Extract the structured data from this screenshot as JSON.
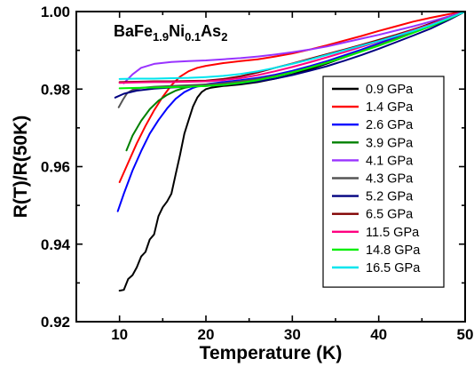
{
  "chart_data": {
    "type": "line",
    "title": "",
    "annotation": {
      "parts": [
        {
          "text": "BaFe",
          "sub": false
        },
        {
          "text": "1.9",
          "sub": true
        },
        {
          "text": "Ni",
          "sub": false
        },
        {
          "text": "0.1",
          "sub": true
        },
        {
          "text": "As",
          "sub": false
        },
        {
          "text": "2",
          "sub": true
        }
      ]
    },
    "xlabel": "Temperature (K)",
    "ylabel": "R(T)/R(50K)",
    "xlim": [
      5,
      50
    ],
    "ylim": [
      0.92,
      1.0
    ],
    "xticks": [
      10,
      20,
      30,
      40,
      50
    ],
    "xtick_labels": [
      "10",
      "20",
      "30",
      "40",
      "50"
    ],
    "yticks": [
      0.92,
      0.94,
      0.96,
      0.98,
      1.0
    ],
    "ytick_labels": [
      "0.92",
      "0.94",
      "0.96",
      "0.98",
      "1.00"
    ],
    "grid": false,
    "legend_position": "right",
    "series": [
      {
        "name": "0.9 GPa",
        "color": "#000000",
        "x": [
          10.0,
          10.5,
          11.0,
          11.5,
          12.0,
          12.5,
          13.0,
          13.5,
          14.0,
          14.5,
          15.0,
          15.5,
          16.0,
          16.5,
          17.0,
          17.5,
          18.0,
          18.5,
          19.0,
          19.5,
          20.0,
          20.5,
          21.0,
          22.0,
          24.0,
          26.0,
          28.0,
          30.0,
          32.0,
          34.0,
          36.0,
          38.0,
          40.0,
          42.0,
          44.0,
          46.0,
          48.0,
          50.0
        ],
        "y": [
          0.928,
          0.9282,
          0.931,
          0.932,
          0.934,
          0.9368,
          0.938,
          0.9412,
          0.9425,
          0.9472,
          0.9495,
          0.951,
          0.953,
          0.958,
          0.963,
          0.9685,
          0.972,
          0.9755,
          0.9778,
          0.9792,
          0.98,
          0.9803,
          0.9805,
          0.9808,
          0.9812,
          0.9818,
          0.9827,
          0.9838,
          0.9851,
          0.9866,
          0.9882,
          0.9899,
          0.9917,
          0.9935,
          0.9953,
          0.9969,
          0.9985,
          1.0
        ]
      },
      {
        "name": "1.4 GPa",
        "color": "#ff0000",
        "x": [
          10.0,
          11.0,
          12.0,
          13.0,
          14.0,
          15.0,
          16.0,
          17.0,
          18.0,
          19.0,
          20.0,
          22.0,
          24.0,
          26.0,
          28.0,
          30.0,
          32.0,
          34.0,
          36.0,
          38.0,
          40.0,
          42.0,
          44.0,
          46.0,
          48.0,
          50.0
        ],
        "y": [
          0.956,
          0.961,
          0.966,
          0.9705,
          0.9745,
          0.978,
          0.981,
          0.9832,
          0.9846,
          0.9855,
          0.986,
          0.9867,
          0.9872,
          0.9877,
          0.9884,
          0.9892,
          0.9902,
          0.9913,
          0.9925,
          0.9937,
          0.995,
          0.9962,
          0.9974,
          0.9984,
          0.9993,
          1.0
        ]
      },
      {
        "name": "2.6 GPa",
        "color": "#0000ff",
        "x": [
          9.8,
          10.5,
          11.5,
          12.5,
          13.5,
          14.5,
          15.5,
          16.5,
          17.5,
          18.5,
          19.5,
          20.5,
          22.0,
          24.0,
          26.0,
          28.0,
          30.0,
          32.0,
          34.0,
          36.0,
          38.0,
          40.0,
          42.0,
          44.0,
          46.0,
          48.0,
          50.0
        ],
        "y": [
          0.9485,
          0.953,
          0.959,
          0.964,
          0.9685,
          0.972,
          0.975,
          0.9775,
          0.9792,
          0.9803,
          0.981,
          0.9814,
          0.9818,
          0.9823,
          0.9829,
          0.9837,
          0.9847,
          0.9859,
          0.9872,
          0.9887,
          0.9902,
          0.9918,
          0.9934,
          0.995,
          0.9966,
          0.9983,
          1.0
        ]
      },
      {
        "name": "3.9 GPa",
        "color": "#008000",
        "x": [
          10.8,
          11.5,
          12.5,
          13.5,
          14.5,
          15.5,
          16.5,
          17.5,
          18.5,
          20.0,
          22.0,
          24.0,
          26.0,
          28.0,
          30.0,
          32.0,
          34.0,
          36.0,
          38.0,
          40.0,
          42.0,
          44.0,
          46.0,
          48.0,
          50.0
        ],
        "y": [
          0.9642,
          0.968,
          0.9718,
          0.9748,
          0.977,
          0.9785,
          0.9796,
          0.9803,
          0.9807,
          0.981,
          0.9813,
          0.9818,
          0.9825,
          0.9833,
          0.9843,
          0.9855,
          0.9868,
          0.9882,
          0.9897,
          0.9913,
          0.993,
          0.9947,
          0.9964,
          0.9982,
          1.0
        ]
      },
      {
        "name": "4.1 GPa",
        "color": "#9933ff",
        "x": [
          10.5,
          11.5,
          12.5,
          14.0,
          16.0,
          18.0,
          20.0,
          22.0,
          24.0,
          26.0,
          28.0,
          30.0,
          32.0,
          34.0,
          36.0,
          38.0,
          40.0,
          42.0,
          44.0,
          46.0,
          48.0,
          50.0
        ],
        "y": [
          0.9815,
          0.9838,
          0.9855,
          0.9865,
          0.987,
          0.9872,
          0.9874,
          0.9877,
          0.988,
          0.9884,
          0.9889,
          0.9895,
          0.9902,
          0.991,
          0.992,
          0.993,
          0.994,
          0.9951,
          0.9962,
          0.9974,
          0.9987,
          1.0
        ]
      },
      {
        "name": "4.3 GPa",
        "color": "#555555",
        "x": [
          9.9,
          10.4,
          10.9,
          11.5,
          12.5,
          14.0,
          16.0,
          18.0,
          20.0,
          22.0,
          24.0,
          26.0,
          28.0,
          30.0,
          32.0,
          34.0,
          36.0,
          38.0,
          40.0,
          42.0,
          44.0,
          46.0,
          48.0,
          50.0
        ],
        "y": [
          0.9753,
          0.9773,
          0.979,
          0.9798,
          0.9803,
          0.9806,
          0.9808,
          0.981,
          0.9812,
          0.9815,
          0.982,
          0.9826,
          0.9834,
          0.9844,
          0.9856,
          0.9869,
          0.9883,
          0.9898,
          0.9914,
          0.993,
          0.9947,
          0.9964,
          0.9982,
          1.0
        ]
      },
      {
        "name": "5.2 GPa",
        "color": "#000080",
        "x": [
          9.5,
          10.5,
          12.0,
          14.0,
          16.0,
          18.0,
          20.0,
          22.0,
          24.0,
          26.0,
          28.0,
          30.0,
          32.0,
          34.0,
          36.0,
          38.0,
          40.0,
          42.0,
          44.0,
          46.0,
          48.0,
          50.0
        ],
        "y": [
          0.9778,
          0.9788,
          0.9796,
          0.9801,
          0.9804,
          0.9806,
          0.9808,
          0.9811,
          0.9815,
          0.982,
          0.9827,
          0.9836,
          0.9847,
          0.9859,
          0.9873,
          0.9888,
          0.9904,
          0.9921,
          0.9938,
          0.9956,
          0.9977,
          1.0
        ]
      },
      {
        "name": "6.5 GPa",
        "color": "#800000",
        "x": [
          10.0,
          12.0,
          14.0,
          16.0,
          18.0,
          20.0,
          22.0,
          24.0,
          26.0,
          28.0,
          30.0,
          32.0,
          34.0,
          36.0,
          38.0,
          40.0,
          42.0,
          44.0,
          46.0,
          48.0,
          50.0
        ],
        "y": [
          0.9818,
          0.9819,
          0.982,
          0.982,
          0.9821,
          0.9822,
          0.9826,
          0.9833,
          0.9843,
          0.9855,
          0.9866,
          0.9878,
          0.989,
          0.9902,
          0.9914,
          0.9927,
          0.994,
          0.9954,
          0.9968,
          0.9983,
          1.0
        ]
      },
      {
        "name": "11.5 GPa",
        "color": "#ff0080",
        "x": [
          10.0,
          12.0,
          14.0,
          16.0,
          18.0,
          20.0,
          22.0,
          24.0,
          26.0,
          28.0,
          30.0,
          32.0,
          34.0,
          36.0,
          38.0,
          40.0,
          42.0,
          44.0,
          46.0,
          48.0,
          50.0
        ],
        "y": [
          0.9816,
          0.9817,
          0.9818,
          0.9818,
          0.9819,
          0.982,
          0.9823,
          0.9828,
          0.9836,
          0.9846,
          0.9857,
          0.9869,
          0.9882,
          0.9895,
          0.9909,
          0.9923,
          0.9937,
          0.9952,
          0.9967,
          0.9983,
          1.0
        ]
      },
      {
        "name": "14.8 GPa",
        "color": "#00ee00",
        "x": [
          10.0,
          12.0,
          14.0,
          16.0,
          18.0,
          20.0,
          22.0,
          24.0,
          26.0,
          28.0,
          30.0,
          32.0,
          34.0,
          36.0,
          38.0,
          40.0,
          42.0,
          44.0,
          46.0,
          48.0,
          50.0
        ],
        "y": [
          0.9802,
          0.9803,
          0.9804,
          0.9805,
          0.9806,
          0.9808,
          0.9811,
          0.9816,
          0.9823,
          0.9832,
          0.9843,
          0.9855,
          0.9868,
          0.9882,
          0.9897,
          0.9912,
          0.9928,
          0.9945,
          0.9962,
          0.998,
          1.0
        ]
      },
      {
        "name": "16.5 GPa",
        "color": "#00e5ee",
        "x": [
          10.0,
          12.0,
          14.0,
          16.0,
          18.0,
          20.0,
          22.0,
          24.0,
          26.0,
          28.0,
          30.0,
          32.0,
          34.0,
          36.0,
          38.0,
          40.0,
          42.0,
          44.0,
          46.0,
          48.0,
          50.0
        ],
        "y": [
          0.9826,
          0.9827,
          0.9827,
          0.9828,
          0.9829,
          0.9831,
          0.9834,
          0.9839,
          0.9846,
          0.9855,
          0.9865,
          0.9876,
          0.9888,
          0.99,
          0.9912,
          0.9924,
          0.9937,
          0.995,
          0.9965,
          0.9982,
          1.0
        ]
      }
    ]
  }
}
